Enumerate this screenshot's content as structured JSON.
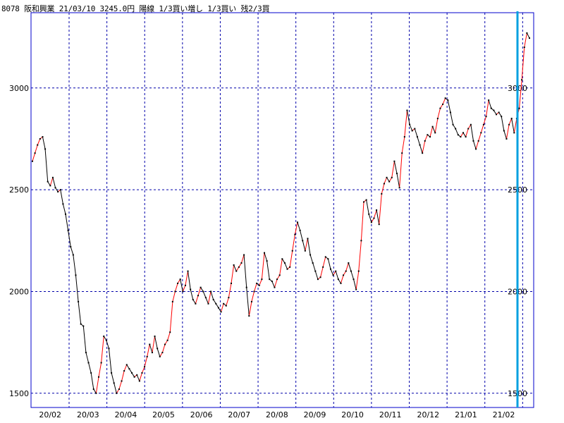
{
  "title": "8078 阪和興業 21/03/10 3245.0円 陽線 1/3買い増し 1/3買い 残2/3買",
  "colors": {
    "up": "#ff0000",
    "down": "#000000",
    "grid": "#0000aa",
    "marker": "#00a0e0",
    "frame": "#0000cc"
  },
  "chart_data": {
    "type": "line",
    "title": "8078 阪和興業 21/03/10 3245.0円 陽線 1/3買い増し 1/3買い 残2/3買",
    "xlabel": "",
    "ylabel": "",
    "ylim": [
      1430,
      3370
    ],
    "yticks": [
      1500,
      2000,
      2500,
      3000
    ],
    "grid": true,
    "x_tick_labels": [
      "20/02",
      "20/03",
      "20/04",
      "20/05",
      "20/06",
      "20/07",
      "20/08",
      "20/09",
      "20/10",
      "20/11",
      "20/12",
      "21/01",
      "21/02"
    ],
    "series": [
      {
        "values": [
          2640,
          2680,
          2720,
          2750,
          2760,
          2700,
          2540,
          2520,
          2560,
          2510,
          2490,
          2500,
          2430,
          2380,
          2300,
          2220,
          2180,
          2080,
          1950,
          1840,
          1830,
          1700,
          1650,
          1600,
          1520,
          1500,
          1580,
          1650,
          1780,
          1760,
          1720,
          1600,
          1550,
          1500,
          1520,
          1560,
          1610,
          1640,
          1620,
          1600,
          1580,
          1590,
          1560,
          1600,
          1630,
          1680,
          1740,
          1700,
          1780,
          1720,
          1680,
          1700,
          1740,
          1760,
          1800,
          1950,
          2000,
          2040,
          2060,
          2000,
          2030,
          2100,
          2010,
          1960,
          1940,
          1980,
          2020,
          2000,
          1970,
          1940,
          2000,
          1960,
          1940,
          1920,
          1900,
          1940,
          1930,
          1970,
          2040,
          2130,
          2100,
          2120,
          2140,
          2180,
          2020,
          1880,
          1950,
          2000,
          2040,
          2030,
          2060,
          2190,
          2150,
          2060,
          2050,
          2020,
          2060,
          2080,
          2160,
          2140,
          2110,
          2120,
          2200,
          2280,
          2340,
          2300,
          2250,
          2200,
          2260,
          2180,
          2140,
          2100,
          2060,
          2070,
          2120,
          2170,
          2160,
          2110,
          2080,
          2100,
          2060,
          2040,
          2080,
          2100,
          2140,
          2100,
          2060,
          2010,
          2100,
          2250,
          2440,
          2450,
          2380,
          2340,
          2360,
          2400,
          2330,
          2480,
          2530,
          2560,
          2540,
          2560,
          2640,
          2580,
          2510,
          2680,
          2760,
          2890,
          2820,
          2790,
          2800,
          2760,
          2720,
          2680,
          2740,
          2770,
          2760,
          2810,
          2780,
          2850,
          2900,
          2920,
          2950,
          2940,
          2880,
          2820,
          2800,
          2770,
          2760,
          2780,
          2760,
          2800,
          2820,
          2740,
          2700,
          2740,
          2780,
          2820,
          2860,
          2940,
          2900,
          2890,
          2870,
          2880,
          2860,
          2790,
          2750,
          2820,
          2850,
          2780,
          2850,
          2900,
          3040,
          3200,
          3270,
          3245
        ]
      }
    ]
  }
}
